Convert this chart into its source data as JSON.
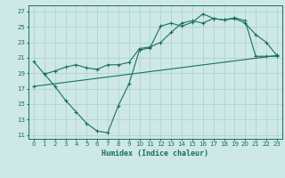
{
  "title": "",
  "xlabel": "Humidex (Indice chaleur)",
  "bg_color": "#cde8e5",
  "grid_color": "#b0d4d0",
  "line_color": "#1a6e65",
  "xlim": [
    -0.5,
    23.5
  ],
  "ylim": [
    10.5,
    27.8
  ],
  "xticks": [
    0,
    1,
    2,
    3,
    4,
    5,
    6,
    7,
    8,
    9,
    10,
    11,
    12,
    13,
    14,
    15,
    16,
    17,
    18,
    19,
    20,
    21,
    22,
    23
  ],
  "yticks": [
    11,
    13,
    15,
    17,
    19,
    21,
    23,
    25,
    27
  ],
  "line1_x": [
    0,
    1,
    2,
    3,
    4,
    5,
    6,
    7,
    8,
    9,
    10,
    11,
    12,
    13,
    14,
    15,
    16,
    17,
    18,
    19,
    20,
    21,
    22,
    23
  ],
  "line1_y": [
    20.5,
    18.9,
    17.3,
    15.5,
    14.0,
    12.5,
    11.5,
    11.3,
    14.8,
    17.6,
    22.0,
    22.3,
    25.1,
    25.5,
    25.1,
    25.6,
    26.7,
    26.1,
    25.9,
    26.1,
    25.5,
    24.0,
    23.0,
    21.3
  ],
  "line2_x": [
    1,
    2,
    3,
    4,
    5,
    6,
    7,
    8,
    9,
    10,
    11,
    12,
    13,
    14,
    15,
    16,
    17,
    18,
    19,
    20,
    21,
    22,
    23
  ],
  "line2_y": [
    18.9,
    19.3,
    19.8,
    20.1,
    19.7,
    19.5,
    20.1,
    20.1,
    20.4,
    22.2,
    22.4,
    23.0,
    24.3,
    25.5,
    25.8,
    25.5,
    26.1,
    25.9,
    26.2,
    25.8,
    21.2,
    21.2,
    21.2
  ],
  "line3_x": [
    0,
    23
  ],
  "line3_y": [
    17.3,
    21.3
  ]
}
